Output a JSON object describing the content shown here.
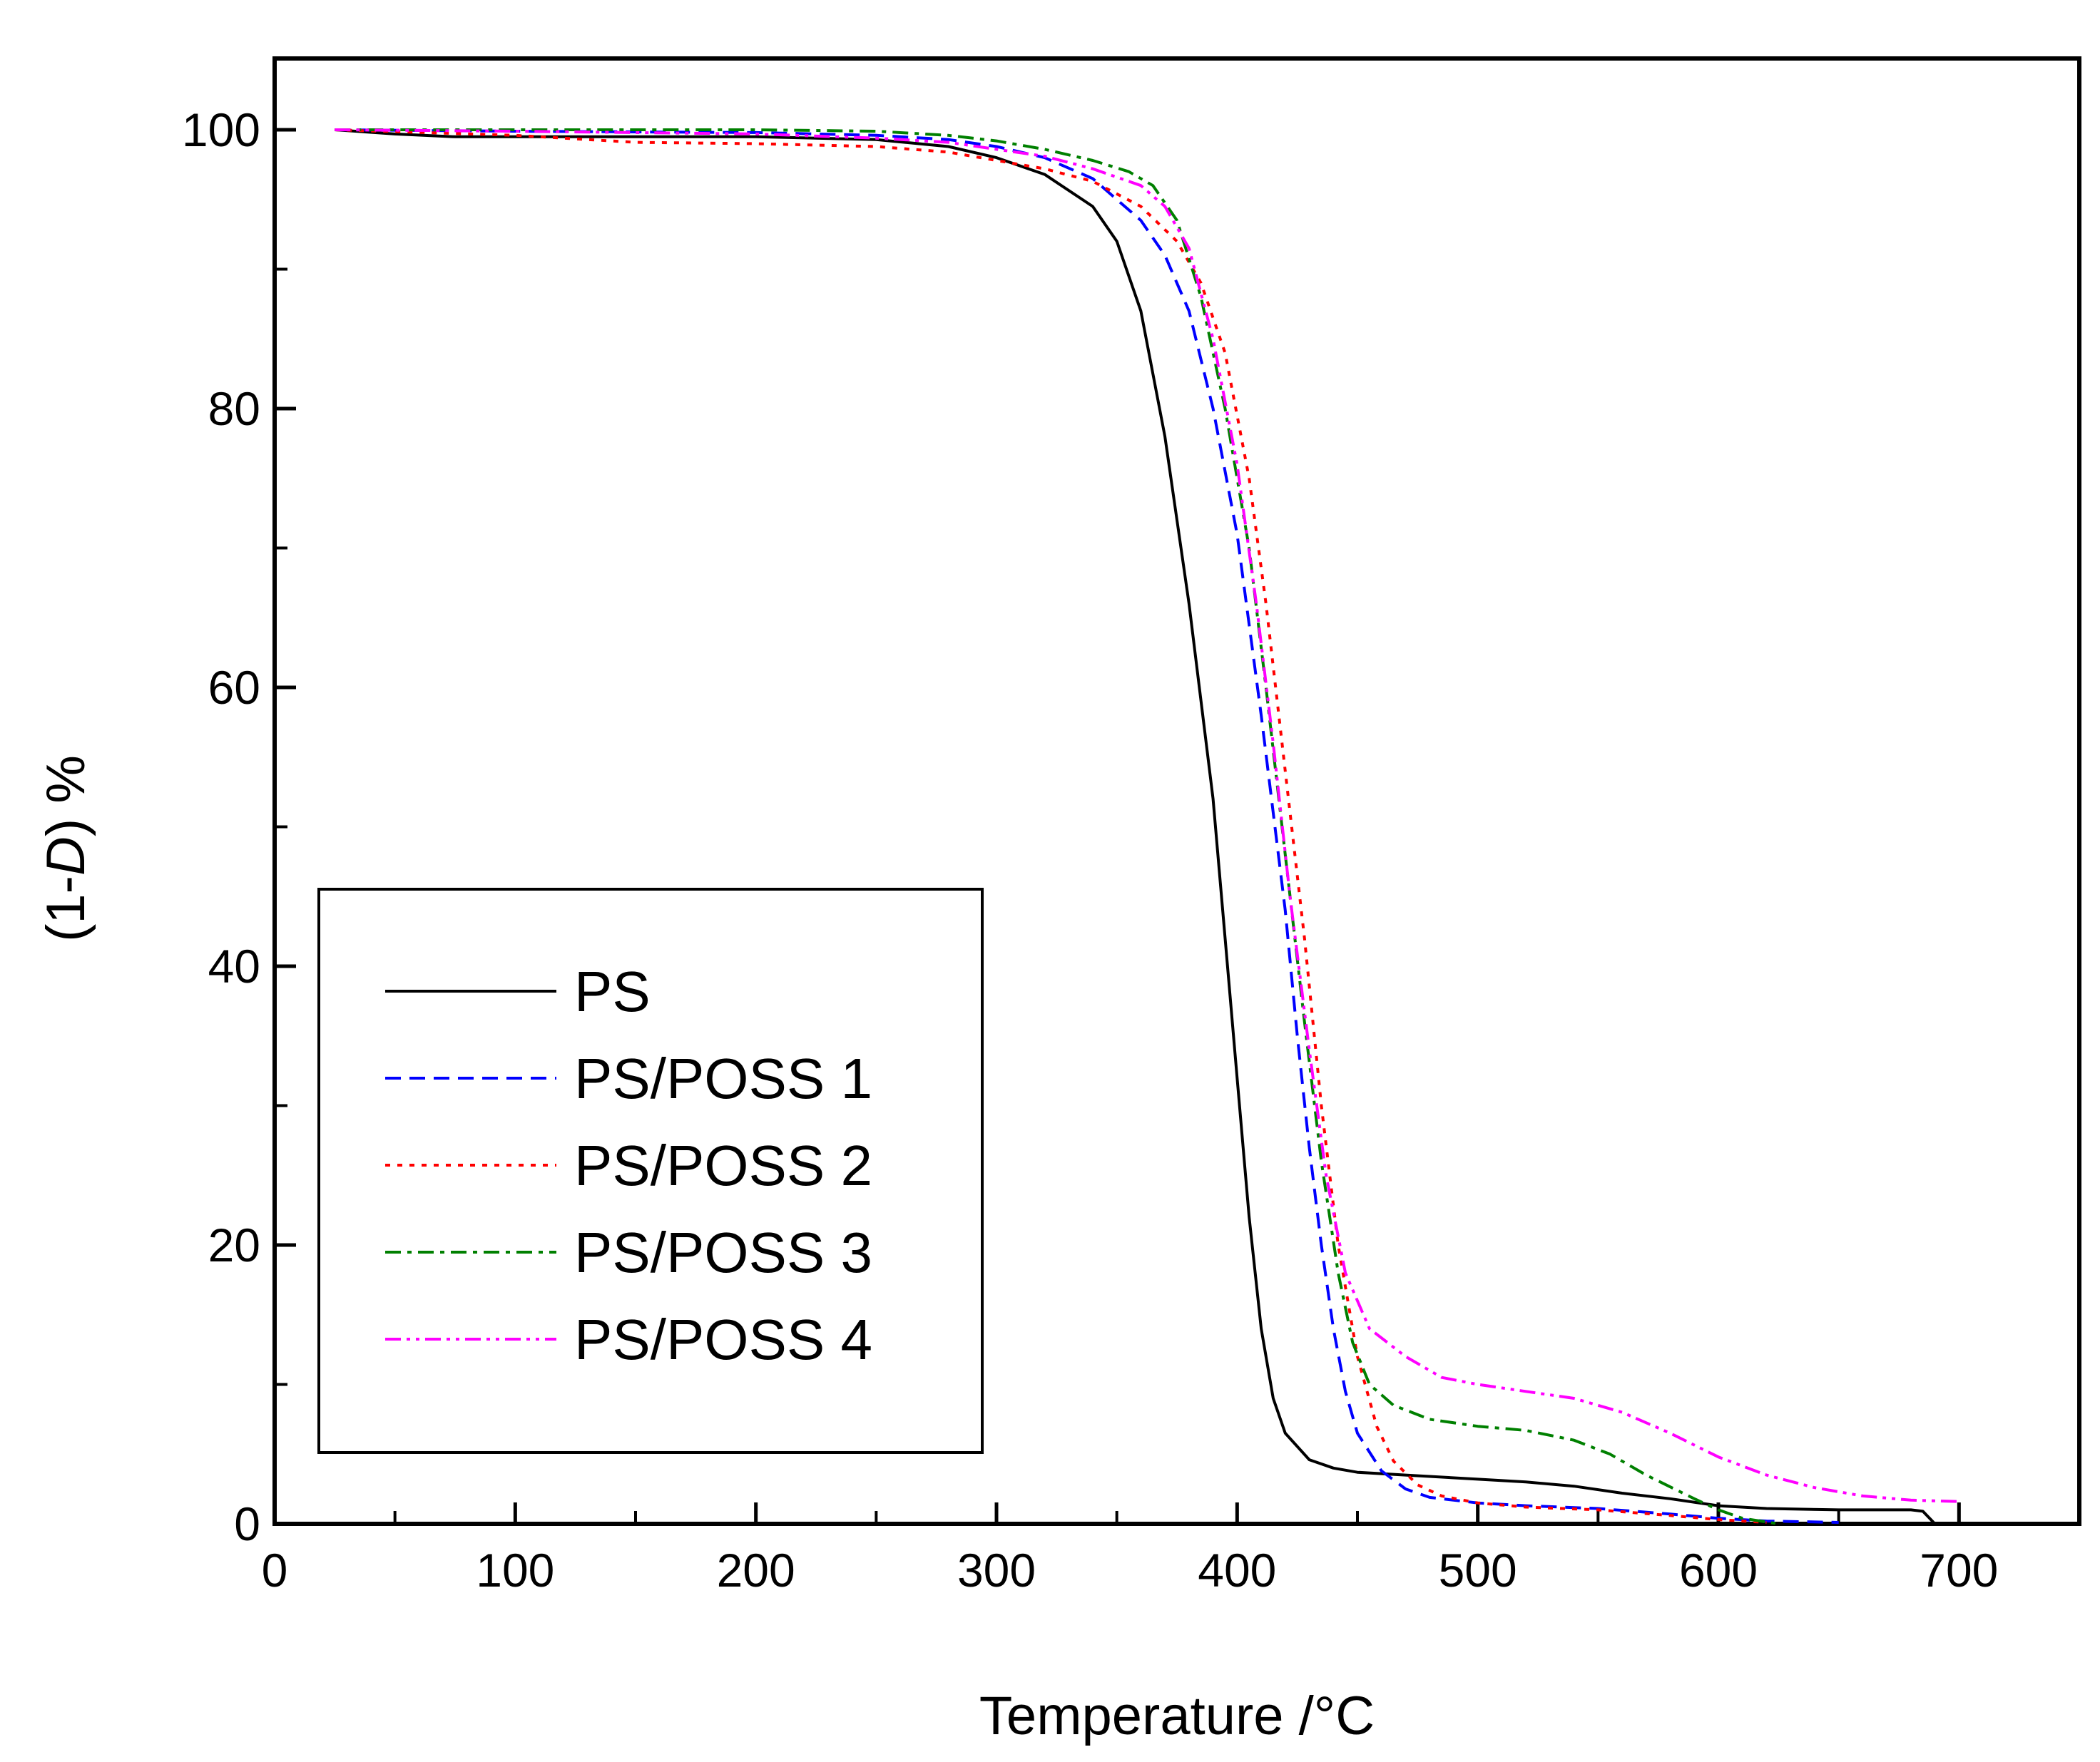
{
  "chart_data": {
    "type": "line",
    "title": "",
    "xlabel": "Temperature /°C",
    "ylabel_parts": [
      "(1-",
      "D",
      ") %"
    ],
    "xlim": [
      0,
      750
    ],
    "ylim": [
      0,
      105
    ],
    "x_ticks": [
      0,
      100,
      200,
      300,
      400,
      500,
      600,
      700
    ],
    "y_ticks": [
      0,
      20,
      40,
      60,
      80,
      100
    ],
    "x_tick_labels": [
      "0",
      "100",
      "200",
      "300",
      "400",
      "500",
      "600",
      "700"
    ],
    "y_tick_labels": [
      "0",
      "20",
      "40",
      "60",
      "80",
      "100"
    ],
    "grid": false,
    "legend_position": "lower-left",
    "series": [
      {
        "name": "PS",
        "color": "#000000",
        "dash": "solid",
        "points": [
          [
            25,
            100
          ],
          [
            50,
            99.7
          ],
          [
            75,
            99.5
          ],
          [
            100,
            99.5
          ],
          [
            150,
            99.5
          ],
          [
            200,
            99.5
          ],
          [
            250,
            99.3
          ],
          [
            280,
            98.8
          ],
          [
            300,
            98
          ],
          [
            320,
            96.8
          ],
          [
            340,
            94.5
          ],
          [
            350,
            92
          ],
          [
            360,
            87
          ],
          [
            370,
            78
          ],
          [
            380,
            66
          ],
          [
            390,
            52
          ],
          [
            395,
            42
          ],
          [
            400,
            32
          ],
          [
            405,
            22
          ],
          [
            410,
            14
          ],
          [
            415,
            9
          ],
          [
            420,
            6.5
          ],
          [
            430,
            4.6
          ],
          [
            440,
            4
          ],
          [
            450,
            3.7
          ],
          [
            470,
            3.5
          ],
          [
            500,
            3.2
          ],
          [
            520,
            3
          ],
          [
            540,
            2.7
          ],
          [
            560,
            2.2
          ],
          [
            580,
            1.8
          ],
          [
            600,
            1.3
          ],
          [
            620,
            1.1
          ],
          [
            650,
            1
          ],
          [
            680,
            1
          ],
          [
            685,
            0.9
          ],
          [
            690,
            0
          ]
        ]
      },
      {
        "name": "PS/POSS 1",
        "color": "#0000ff",
        "dash": "dashed",
        "points": [
          [
            25,
            100
          ],
          [
            100,
            99.9
          ],
          [
            200,
            99.8
          ],
          [
            250,
            99.6
          ],
          [
            280,
            99.3
          ],
          [
            300,
            98.8
          ],
          [
            320,
            98
          ],
          [
            340,
            96.5
          ],
          [
            360,
            93.5
          ],
          [
            370,
            91
          ],
          [
            380,
            87
          ],
          [
            390,
            80
          ],
          [
            400,
            71
          ],
          [
            410,
            58
          ],
          [
            420,
            44
          ],
          [
            425,
            35
          ],
          [
            430,
            27
          ],
          [
            435,
            20
          ],
          [
            440,
            14
          ],
          [
            445,
            9.5
          ],
          [
            450,
            6.5
          ],
          [
            460,
            3.8
          ],
          [
            470,
            2.5
          ],
          [
            480,
            1.9
          ],
          [
            500,
            1.5
          ],
          [
            520,
            1.3
          ],
          [
            550,
            1.1
          ],
          [
            580,
            0.7
          ],
          [
            600,
            0.4
          ],
          [
            620,
            0.2
          ],
          [
            650,
            0.1
          ]
        ]
      },
      {
        "name": "PS/POSS 2",
        "color": "#ff0000",
        "dash": "dotted",
        "points": [
          [
            25,
            100
          ],
          [
            100,
            99.6
          ],
          [
            150,
            99.1
          ],
          [
            200,
            99
          ],
          [
            250,
            98.8
          ],
          [
            280,
            98.4
          ],
          [
            300,
            97.8
          ],
          [
            320,
            97.2
          ],
          [
            340,
            96.3
          ],
          [
            360,
            94.5
          ],
          [
            375,
            92
          ],
          [
            385,
            89
          ],
          [
            395,
            84
          ],
          [
            405,
            75
          ],
          [
            412,
            66
          ],
          [
            420,
            54
          ],
          [
            428,
            42
          ],
          [
            435,
            30
          ],
          [
            442,
            20
          ],
          [
            450,
            12
          ],
          [
            458,
            7
          ],
          [
            465,
            4.5
          ],
          [
            475,
            2.8
          ],
          [
            485,
            2
          ],
          [
            500,
            1.5
          ],
          [
            520,
            1.2
          ],
          [
            550,
            1
          ],
          [
            580,
            0.6
          ],
          [
            600,
            0.3
          ],
          [
            620,
            0.1
          ]
        ]
      },
      {
        "name": "PS/POSS 3",
        "color": "#008000",
        "dash": "dashdot",
        "points": [
          [
            25,
            100
          ],
          [
            100,
            100
          ],
          [
            200,
            100
          ],
          [
            250,
            99.9
          ],
          [
            280,
            99.6
          ],
          [
            300,
            99.2
          ],
          [
            320,
            98.6
          ],
          [
            340,
            97.8
          ],
          [
            355,
            97
          ],
          [
            365,
            96
          ],
          [
            375,
            93.5
          ],
          [
            385,
            88
          ],
          [
            395,
            80
          ],
          [
            405,
            70
          ],
          [
            412,
            60
          ],
          [
            420,
            48
          ],
          [
            428,
            36
          ],
          [
            435,
            26
          ],
          [
            442,
            18
          ],
          [
            448,
            13
          ],
          [
            455,
            10
          ],
          [
            465,
            8.5
          ],
          [
            480,
            7.5
          ],
          [
            500,
            7
          ],
          [
            520,
            6.7
          ],
          [
            540,
            6
          ],
          [
            555,
            5
          ],
          [
            570,
            3.5
          ],
          [
            590,
            1.8
          ],
          [
            600,
            1
          ],
          [
            610,
            0.4
          ],
          [
            625,
            0
          ]
        ]
      },
      {
        "name": "PS/POSS 4",
        "color": "#ff00ff",
        "dash": "dashdotdot",
        "points": [
          [
            25,
            100
          ],
          [
            100,
            99.9
          ],
          [
            200,
            99.7
          ],
          [
            250,
            99.4
          ],
          [
            280,
            99.1
          ],
          [
            300,
            98.6
          ],
          [
            320,
            98.1
          ],
          [
            340,
            97.2
          ],
          [
            360,
            96
          ],
          [
            370,
            94.5
          ],
          [
            380,
            91.5
          ],
          [
            390,
            85
          ],
          [
            400,
            76
          ],
          [
            408,
            66
          ],
          [
            415,
            56
          ],
          [
            422,
            45
          ],
          [
            430,
            34
          ],
          [
            437,
            25
          ],
          [
            445,
            18
          ],
          [
            455,
            14
          ],
          [
            470,
            12
          ],
          [
            485,
            10.5
          ],
          [
            500,
            10
          ],
          [
            520,
            9.5
          ],
          [
            540,
            9
          ],
          [
            560,
            8
          ],
          [
            580,
            6.5
          ],
          [
            600,
            4.8
          ],
          [
            620,
            3.5
          ],
          [
            640,
            2.6
          ],
          [
            660,
            2
          ],
          [
            680,
            1.7
          ],
          [
            700,
            1.6
          ]
        ]
      }
    ]
  }
}
